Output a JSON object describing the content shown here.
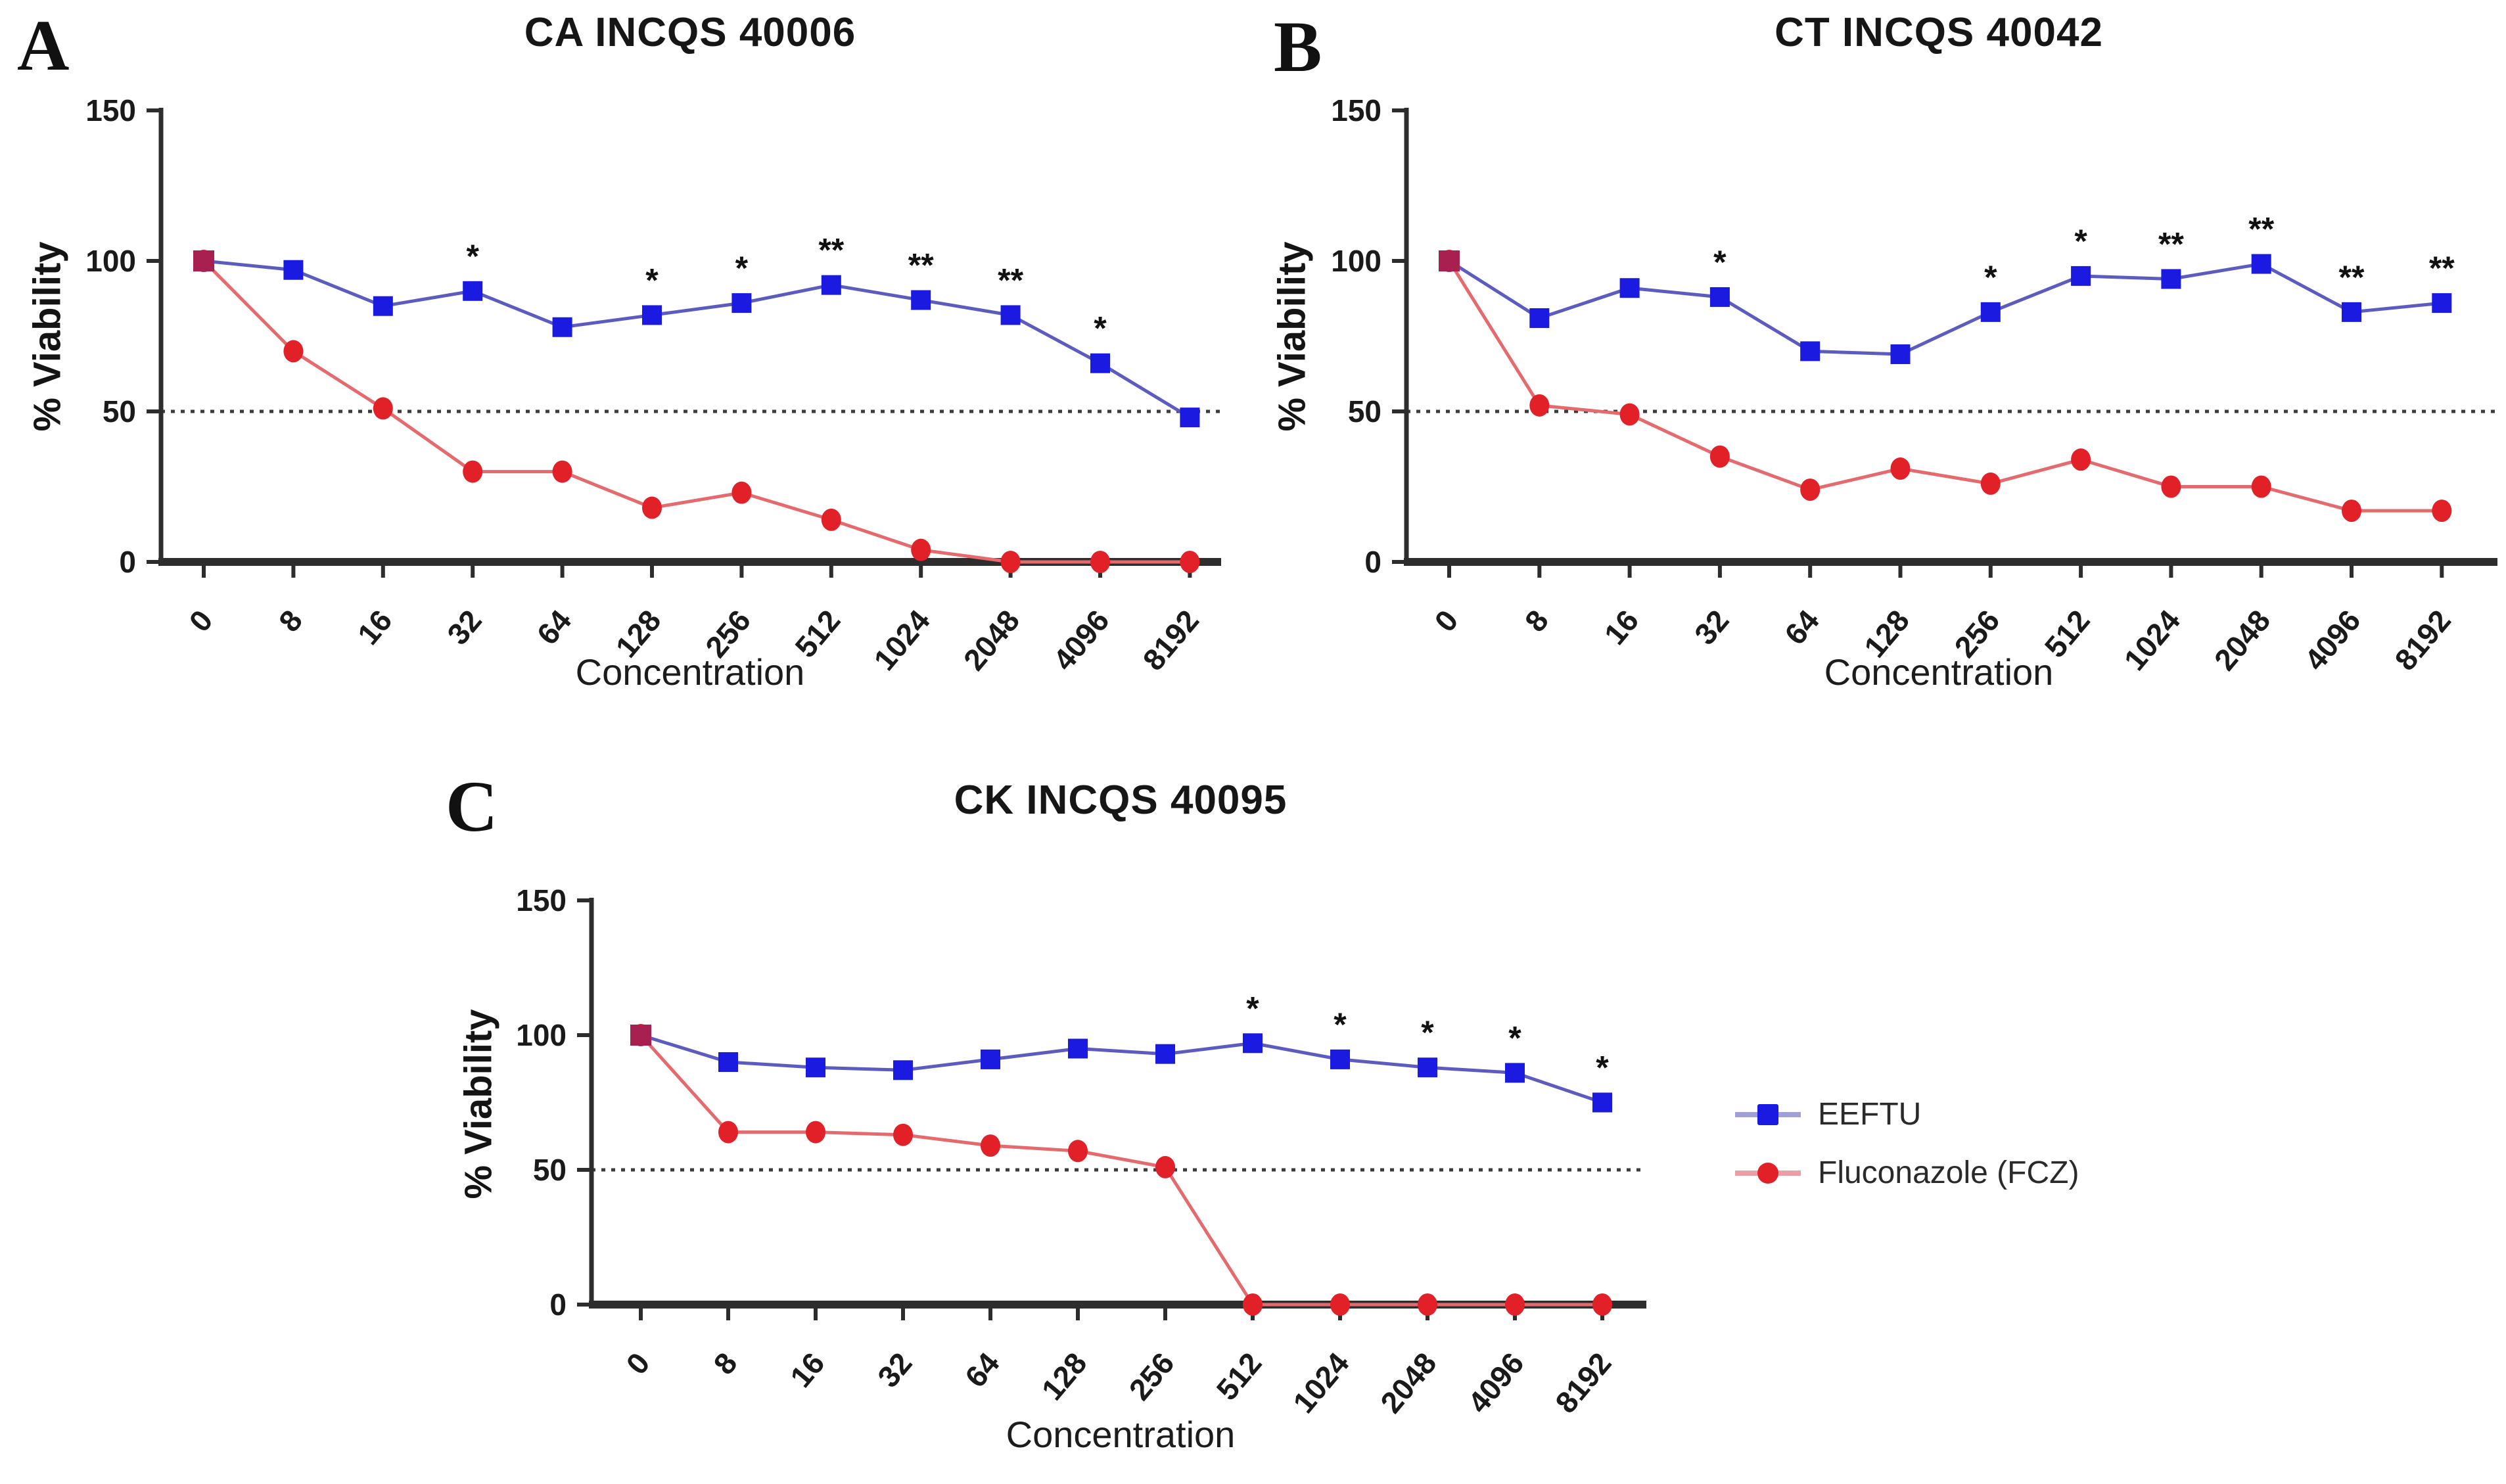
{
  "chart_data": [
    {
      "panel_letter": "A",
      "type": "line",
      "title": "CA INCQS 40006",
      "xlabel": "Concentration",
      "ylabel": "% Viability",
      "categories": [
        "0",
        "8",
        "16",
        "32",
        "64",
        "128",
        "256",
        "512",
        "1024",
        "2048",
        "4096",
        "8192"
      ],
      "ylim": [
        0,
        150
      ],
      "yticks": [
        0,
        50,
        100,
        150
      ],
      "reference_line_y": 50,
      "grid": false,
      "series": [
        {
          "name": "EEFTU",
          "marker": "square",
          "marker_color": "#1a1ae0",
          "line_color": "#5c5cc0",
          "values": [
            100,
            97,
            85,
            90,
            78,
            82,
            86,
            92,
            87,
            82,
            66,
            48
          ],
          "significance": [
            "",
            "",
            "",
            "*",
            "",
            "*",
            "*",
            "**",
            "**",
            "**",
            "*",
            ""
          ]
        },
        {
          "name": "Fluconazole (FCZ)",
          "marker": "circle",
          "marker_color": "#e22028",
          "line_color": "#e46a6e",
          "values": [
            100,
            70,
            51,
            30,
            30,
            18,
            23,
            14,
            4,
            0,
            0,
            0
          ],
          "significance": [
            "",
            "",
            "",
            "",
            "",
            "",
            "",
            "",
            "",
            "",
            "",
            ""
          ]
        }
      ],
      "overlap_marker_color": "#a72050"
    },
    {
      "panel_letter": "B",
      "type": "line",
      "title": "CT INCQS 40042",
      "xlabel": "Concentration",
      "ylabel": "% Viability",
      "categories": [
        "0",
        "8",
        "16",
        "32",
        "64",
        "128",
        "256",
        "512",
        "1024",
        "2048",
        "4096",
        "8192"
      ],
      "ylim": [
        0,
        150
      ],
      "yticks": [
        0,
        50,
        100,
        150
      ],
      "reference_line_y": 50,
      "grid": false,
      "series": [
        {
          "name": "EEFTU",
          "marker": "square",
          "marker_color": "#1a1ae0",
          "line_color": "#5c5cc0",
          "values": [
            100,
            81,
            91,
            88,
            70,
            69,
            83,
            95,
            94,
            99,
            83,
            86
          ],
          "significance": [
            "",
            "",
            "",
            "*",
            "",
            "",
            "*",
            "*",
            "**",
            "**",
            "**",
            "**"
          ]
        },
        {
          "name": "Fluconazole (FCZ)",
          "marker": "circle",
          "marker_color": "#e22028",
          "line_color": "#e46a6e",
          "values": [
            100,
            52,
            49,
            35,
            24,
            31,
            26,
            34,
            25,
            25,
            17,
            17
          ],
          "significance": [
            "",
            "",
            "",
            "",
            "",
            "",
            "",
            "",
            "",
            "",
            "",
            ""
          ]
        }
      ],
      "overlap_marker_color": "#a72050"
    },
    {
      "panel_letter": "C",
      "type": "line",
      "title": "CK INCQS 40095",
      "xlabel": "Concentration",
      "ylabel": "% Viability",
      "categories": [
        "0",
        "8",
        "16",
        "32",
        "64",
        "128",
        "256",
        "512",
        "1024",
        "2048",
        "4096",
        "8192"
      ],
      "ylim": [
        0,
        150
      ],
      "yticks": [
        0,
        50,
        100,
        150
      ],
      "reference_line_y": 50,
      "grid": false,
      "series": [
        {
          "name": "EEFTU",
          "marker": "square",
          "marker_color": "#1a1ae0",
          "line_color": "#5c5cc0",
          "values": [
            100,
            90,
            88,
            87,
            91,
            95,
            93,
            97,
            91,
            88,
            86,
            75
          ],
          "significance": [
            "",
            "",
            "",
            "",
            "",
            "",
            "",
            "*",
            "*",
            "*",
            "*",
            "*"
          ]
        },
        {
          "name": "Fluconazole (FCZ)",
          "marker": "circle",
          "marker_color": "#e22028",
          "line_color": "#e46a6e",
          "values": [
            100,
            64,
            64,
            63,
            59,
            57,
            51,
            0,
            0,
            0,
            0,
            0
          ],
          "significance": [
            "",
            "",
            "",
            "",
            "",
            "",
            "",
            "",
            "",
            "",
            "",
            ""
          ]
        }
      ],
      "overlap_marker_color": "#a72050"
    }
  ],
  "legend": {
    "entries": [
      {
        "label": "EEFTU",
        "marker": "square",
        "marker_color": "#1a1ae0",
        "line_color": "#a0a0d8"
      },
      {
        "label": "Fluconazole (FCZ)",
        "marker": "circle",
        "marker_color": "#e22028",
        "line_color": "#e8a0a4"
      }
    ]
  },
  "style_colors": {
    "axis": "#2d2d2d",
    "reference_line": "#3d3d3d",
    "text": "#141414",
    "background": "#ffffff"
  }
}
